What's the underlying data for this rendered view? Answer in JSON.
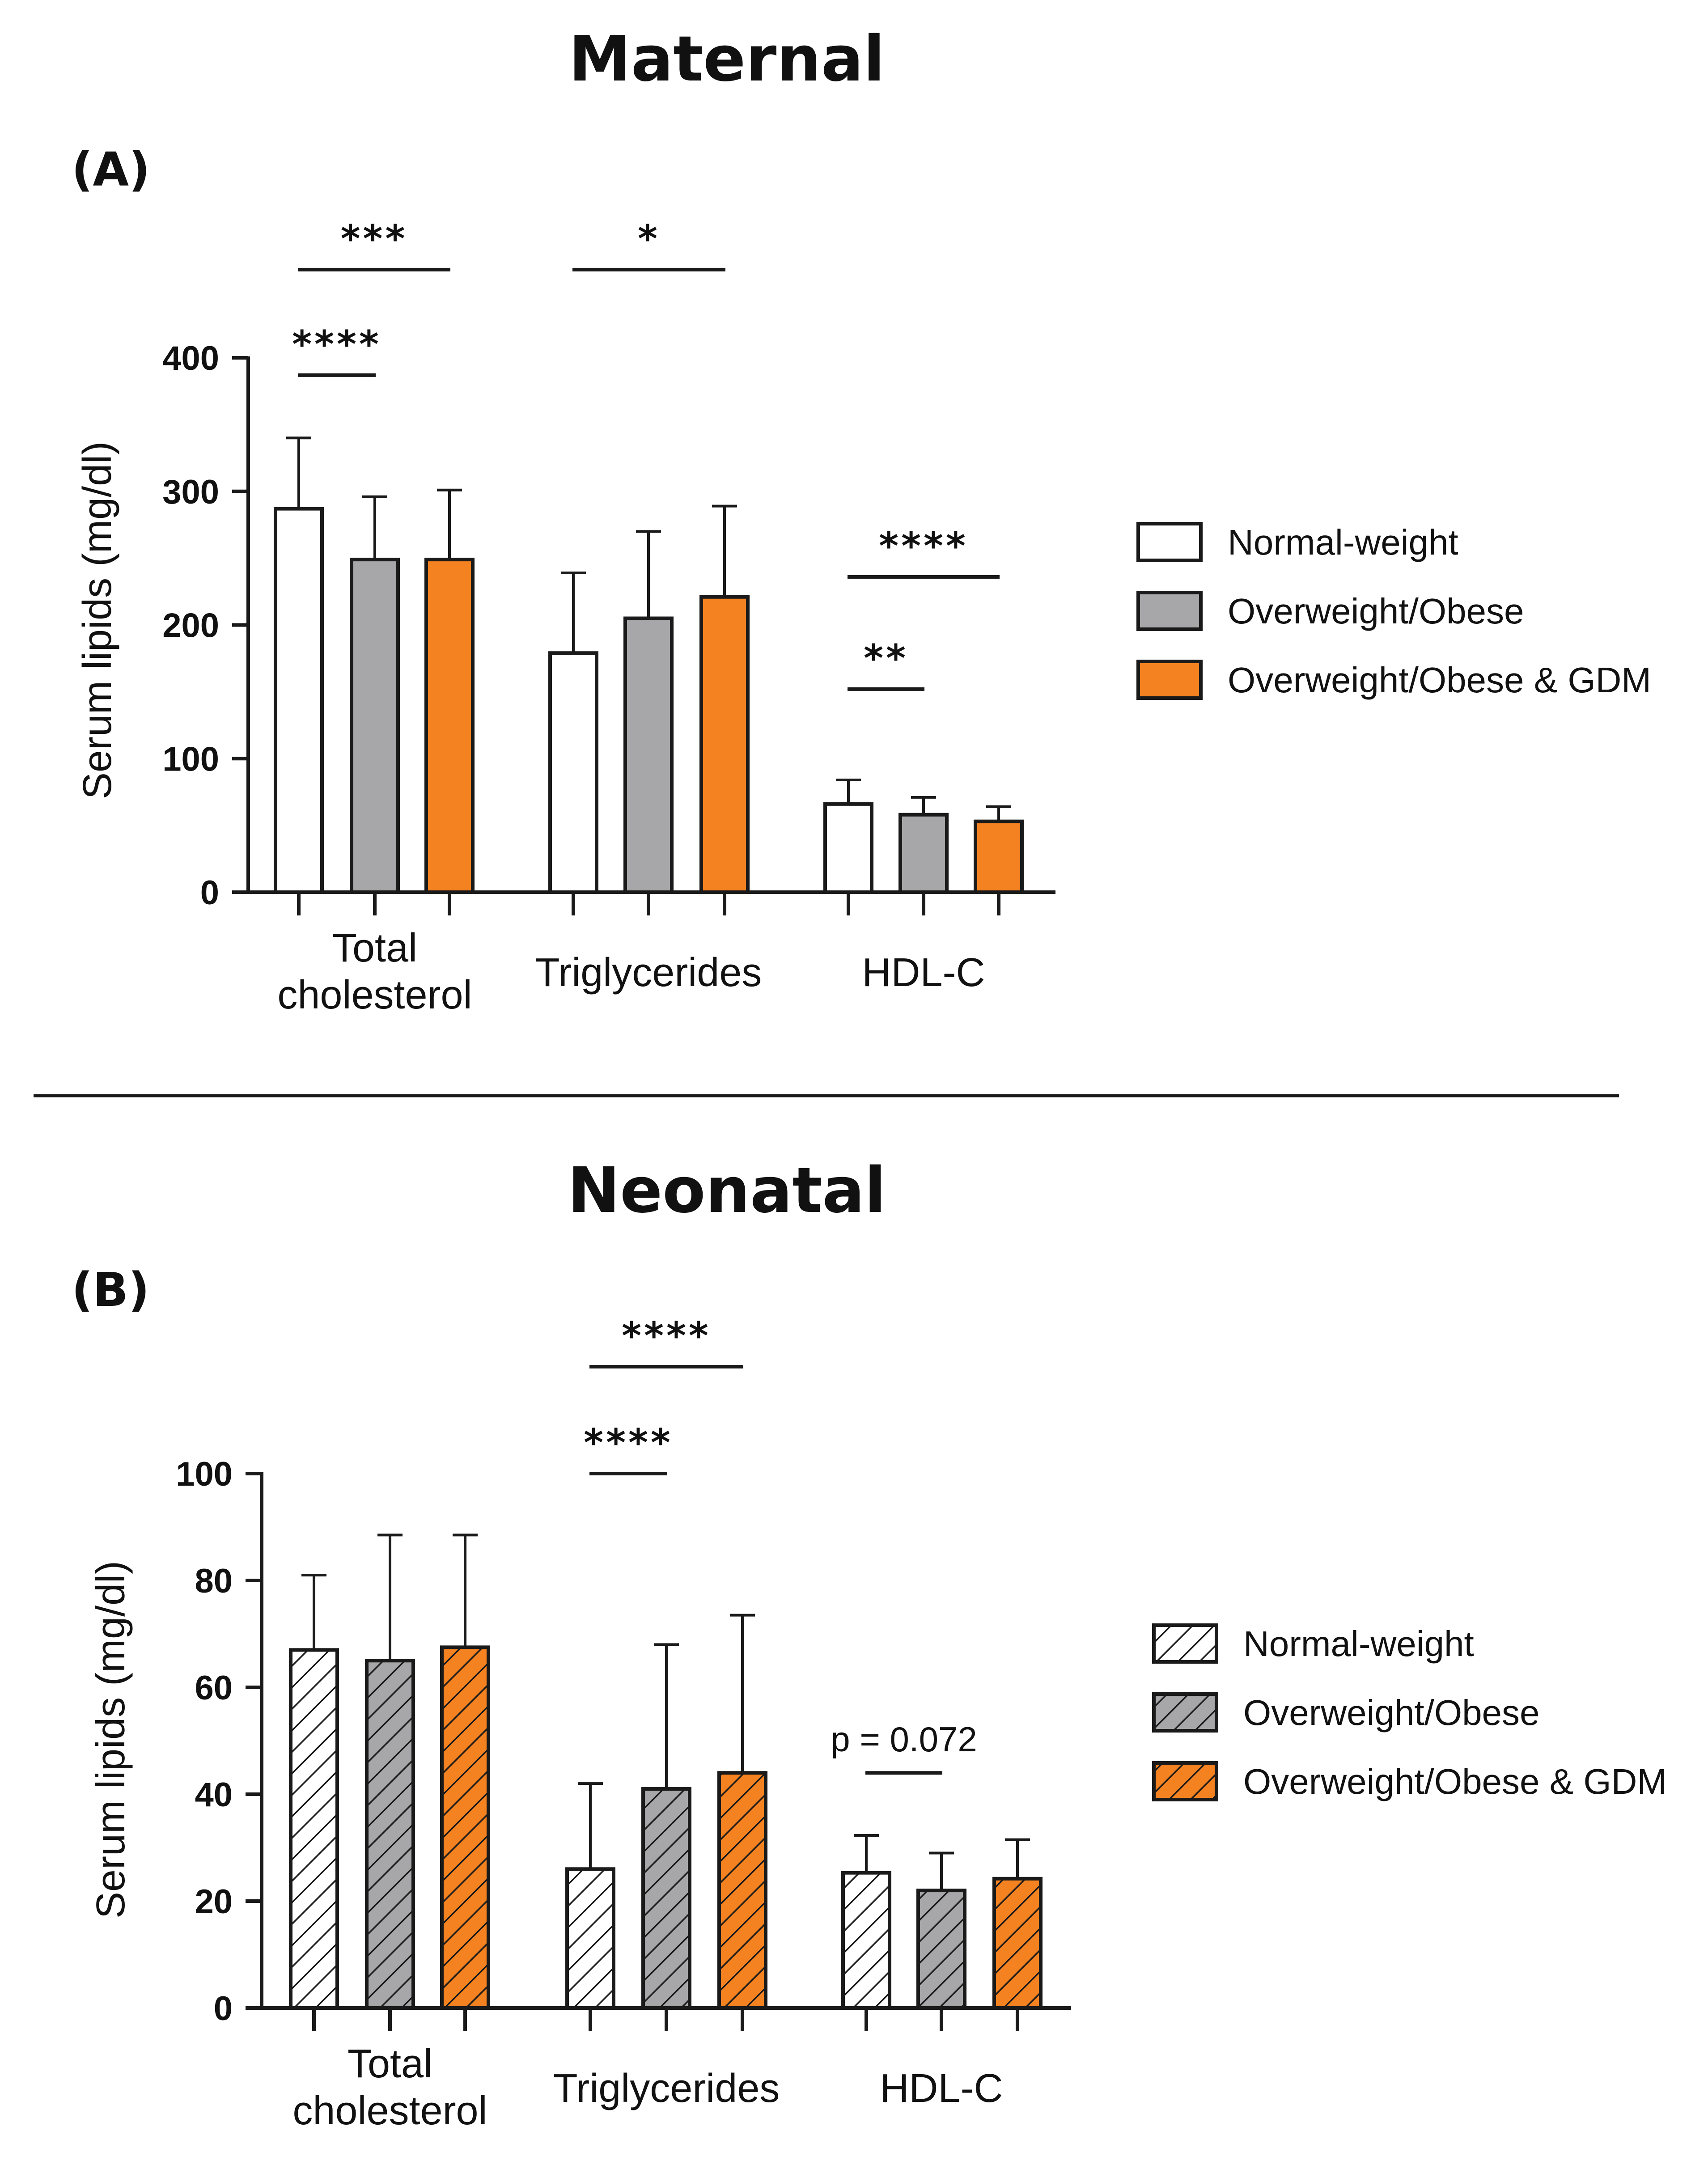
{
  "chart_data": [
    {
      "id": "A",
      "type": "bar",
      "title": "Maternal",
      "panel_label": "(A)",
      "ylabel": "Serum lipids (mg/dl)",
      "ylim": [
        0,
        400
      ],
      "yticks": [
        "0",
        "100",
        "200",
        "300",
        "400"
      ],
      "categories": [
        {
          "lines": [
            "Total",
            "cholesterol"
          ]
        },
        {
          "lines": [
            "Triglycerides"
          ]
        },
        {
          "lines": [
            "HDL-C"
          ]
        }
      ],
      "series": [
        {
          "name": "Normal-weight",
          "values": [
            287,
            179,
            66
          ],
          "errors": [
            53,
            60,
            18
          ]
        },
        {
          "name": "Overweight/Obese",
          "values": [
            249,
            205,
            58
          ],
          "errors": [
            47,
            65,
            13
          ]
        },
        {
          "name": "Overweight/Obese & GDM",
          "values": [
            249,
            221,
            53
          ],
          "errors": [
            52,
            68,
            11
          ]
        }
      ],
      "annotations": [
        {
          "label": "****",
          "category": 0,
          "from": 0,
          "to": 1,
          "value": 387
        },
        {
          "label": "***",
          "category": 0,
          "from": 0,
          "to": 2,
          "value": 466
        },
        {
          "label": "*",
          "category": 1,
          "from": 0,
          "to": 2,
          "value": 466
        },
        {
          "label": "**",
          "category": 2,
          "from": 0,
          "to": 1,
          "value": 152
        },
        {
          "label": "****",
          "category": 2,
          "from": 0,
          "to": 2,
          "value": 236
        }
      ],
      "legend_position": "right",
      "grid": false
    },
    {
      "id": "B",
      "type": "bar",
      "title": "Neonatal",
      "panel_label": "(B)",
      "ylabel": "Serum lipids (mg/dl)",
      "ylim": [
        0,
        100
      ],
      "yticks": [
        "0",
        "20",
        "40",
        "60",
        "80",
        "100"
      ],
      "categories": [
        {
          "lines": [
            "Total",
            "cholesterol"
          ]
        },
        {
          "lines": [
            "Triglycerides"
          ]
        },
        {
          "lines": [
            "HDL-C"
          ]
        }
      ],
      "series": [
        {
          "name": "Normal-weight",
          "values": [
            67,
            26,
            25.3
          ],
          "errors": [
            14,
            16,
            7
          ]
        },
        {
          "name": "Overweight/Obese",
          "values": [
            65,
            41,
            22
          ],
          "errors": [
            23.5,
            27,
            7
          ]
        },
        {
          "name": "Overweight/Obese & GDM",
          "values": [
            67.5,
            44,
            24.2
          ],
          "errors": [
            21,
            29.5,
            7.3
          ]
        }
      ],
      "annotations": [
        {
          "label": "****",
          "category": 1,
          "from": 0,
          "to": 1,
          "value": 100
        },
        {
          "label": "****",
          "category": 1,
          "from": 0,
          "to": 2,
          "value": 120
        },
        {
          "label": "p = 0.072",
          "category": 2,
          "from": 0,
          "to": 1,
          "value": 44
        }
      ],
      "legend_position": "right",
      "grid": false
    }
  ],
  "colors": {
    "normal": "#ffffff",
    "overweight": "#a7a7aa",
    "gdm": "#f58220",
    "ink": "#1a1a1a"
  }
}
